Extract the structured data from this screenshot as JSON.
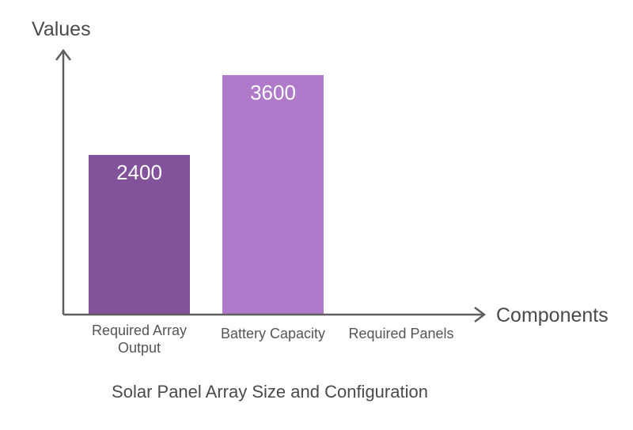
{
  "chart_data": {
    "type": "bar",
    "title": "Solar Panel Array Size and Configuration",
    "xlabel": "Components",
    "ylabel": "Values",
    "categories": [
      [
        "Required Array",
        "Output"
      ],
      [
        "Battery Capacity"
      ],
      [
        "Required Panels"
      ]
    ],
    "values": [
      2400,
      3600,
      null
    ],
    "data_labels": [
      "2400",
      "3600",
      ""
    ],
    "bar_colors": [
      "#82529b",
      "#b07acb",
      "#b07acb"
    ],
    "ylim": [
      0,
      3600
    ],
    "grid": false,
    "legend": "none"
  },
  "colors": {
    "axis": "#5f5f5f",
    "text": "#4a4a4a",
    "bar_label": "#ffffff"
  }
}
